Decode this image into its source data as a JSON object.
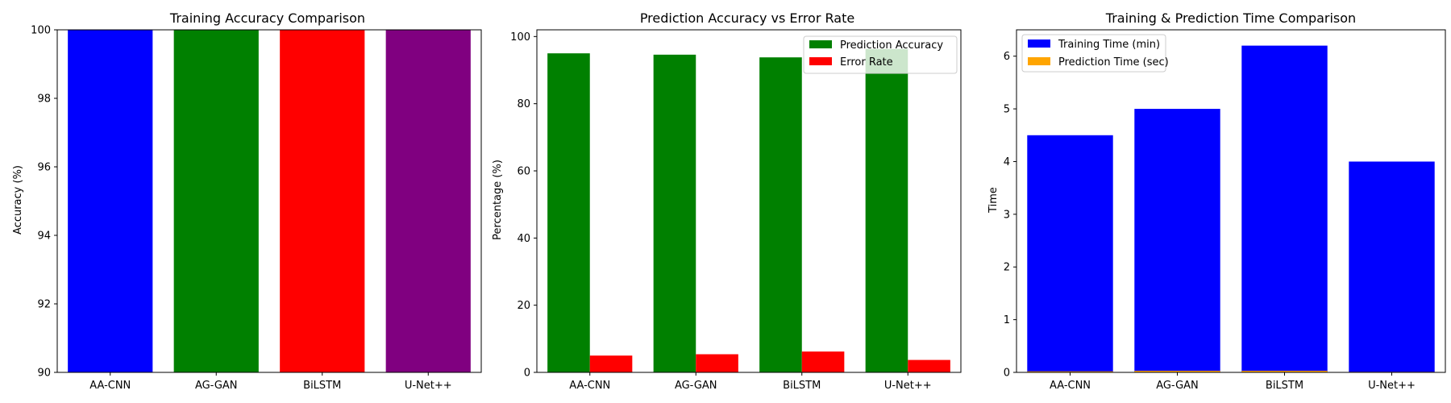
{
  "chart_data": [
    {
      "type": "bar",
      "title": "Training Accuracy Comparison",
      "xlabel": "",
      "ylabel": "Accuracy (%)",
      "categories": [
        "AA-CNN",
        "AG-GAN",
        "BiLSTM",
        "U-Net++"
      ],
      "values": [
        100,
        100,
        100,
        100
      ],
      "colors": [
        "#0000ff",
        "#008000",
        "#ff0000",
        "#800080"
      ],
      "ylim": [
        90,
        100
      ],
      "yticks": [
        90,
        92,
        94,
        96,
        98,
        100
      ],
      "grid": false
    },
    {
      "type": "bar",
      "title": "Prediction Accuracy vs Error Rate",
      "xlabel": "",
      "ylabel": "Percentage (%)",
      "categories": [
        "AA-CNN",
        "AG-GAN",
        "BiLSTM",
        "U-Net++"
      ],
      "series": [
        {
          "name": "Prediction Accuracy",
          "values": [
            95.0,
            94.6,
            93.8,
            96.3
          ],
          "color": "#008000"
        },
        {
          "name": "Error Rate",
          "values": [
            5.0,
            5.4,
            6.2,
            3.7
          ],
          "color": "#ff0000"
        }
      ],
      "ylim": [
        0,
        102
      ],
      "yticks": [
        0,
        20,
        40,
        60,
        80,
        100
      ],
      "legend": "top-right",
      "grid": false
    },
    {
      "type": "bar",
      "title": "Training & Prediction Time Comparison",
      "xlabel": "",
      "ylabel": "Time",
      "categories": [
        "AA-CNN",
        "AG-GAN",
        "BiLSTM",
        "U-Net++"
      ],
      "series": [
        {
          "name": "Training Time (min)",
          "values": [
            4.5,
            5.0,
            6.2,
            4.0
          ],
          "color": "#0000ff"
        },
        {
          "name": "Prediction Time (sec)",
          "values": [
            0.02,
            0.03,
            0.03,
            0.01
          ],
          "color": "#ffa500"
        }
      ],
      "ylim": [
        0,
        6.5
      ],
      "yticks": [
        0,
        1,
        2,
        3,
        4,
        5,
        6
      ],
      "legend": "top-left",
      "grid": false
    }
  ]
}
